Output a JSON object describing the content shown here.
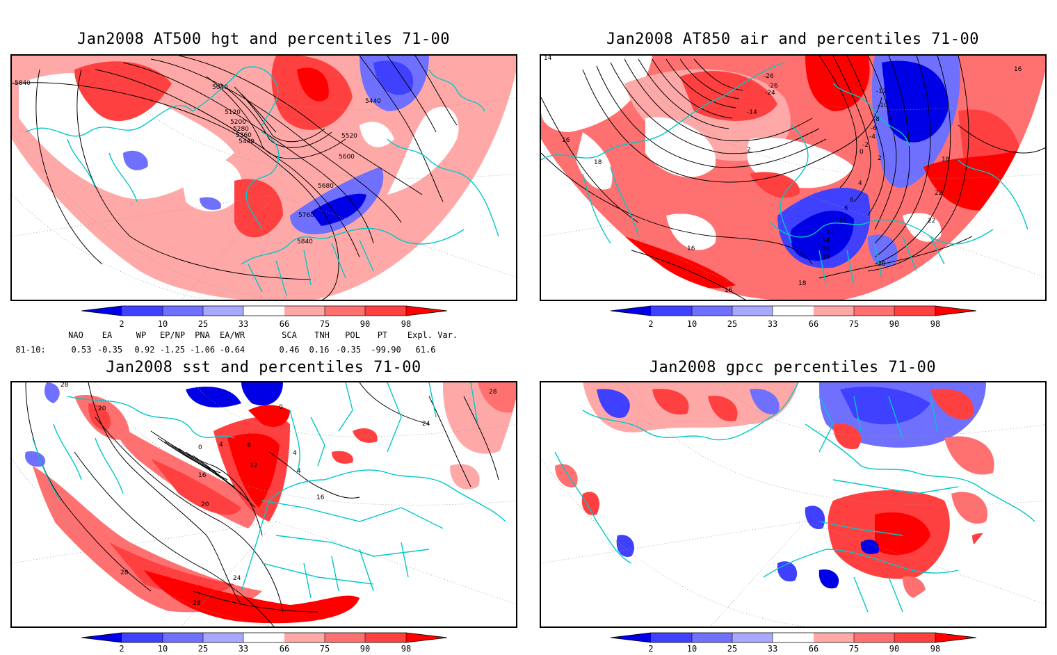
{
  "panels": [
    {
      "title": "Jan2008 AT500 hgt and percentiles 71-00",
      "contour_labels": [
        "5840",
        "5040",
        "5120",
        "5200",
        "5280",
        "5360",
        "5440",
        "5440",
        "5520",
        "5600",
        "5680",
        "5760",
        "5840"
      ]
    },
    {
      "title": "Jan2008 AT850 air and percentiles 71-00",
      "contour_labels": [
        "14",
        "16",
        "16",
        "18",
        "-26",
        "-26",
        "-24",
        "-14",
        "-12",
        "-10",
        "-8",
        "-6",
        "-4",
        "-2",
        "0",
        "2",
        "2",
        "4",
        "6",
        "6",
        "10",
        "12",
        "14",
        "16",
        "18",
        "16",
        "18",
        "20",
        "22",
        "22",
        "16",
        "18"
      ]
    },
    {
      "title": "Jan2008 sst and percentiles 71-00",
      "contour_labels": [
        "28",
        "20",
        "0",
        "0",
        "4",
        "8",
        "4",
        "12",
        "16",
        "20",
        "16",
        "24",
        "28",
        "28",
        "24",
        "28",
        "4"
      ]
    },
    {
      "title": "Jan2008 gpcc percentiles 71-00",
      "contour_labels": []
    }
  ],
  "colorbar": {
    "ticks": [
      "2",
      "10",
      "25",
      "33",
      "66",
      "75",
      "90",
      "98"
    ],
    "colors": [
      "#0000e6",
      "#4040ff",
      "#7070ff",
      "#a8a8ff",
      "#ffffff",
      "#ffa8a8",
      "#ff7070",
      "#ff4040",
      "#ff0000"
    ]
  },
  "teleconnection": {
    "headers": [
      "NAO",
      "EA",
      "WP",
      "EP/NP",
      "PNA",
      "EA/WR",
      "SCA",
      "TNH",
      "POL",
      "PT",
      "Expl. Var."
    ],
    "row_label": "81-10:",
    "values": [
      "0.53",
      "-0.35",
      "0.92",
      "-1.25",
      "-1.06",
      "-0.64",
      "0.46",
      "0.16",
      "-0.35",
      "-99.90",
      "61.6"
    ]
  }
}
